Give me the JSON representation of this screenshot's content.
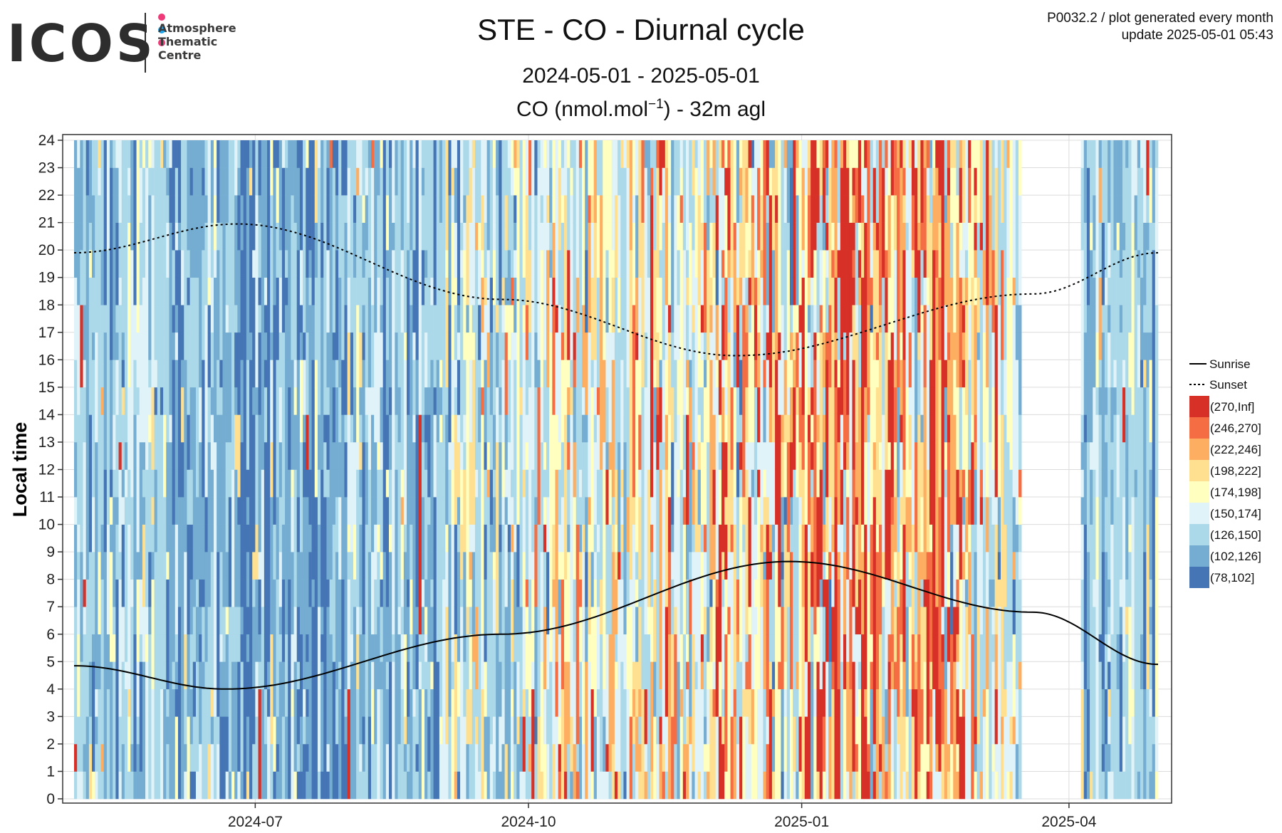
{
  "logo": {
    "text": "ICOS",
    "sub_lines": [
      "Atmosphere",
      "Thematic",
      "Centre"
    ],
    "dot_colors": [
      "#ef3a7a",
      "#1fa3e8",
      "#ef3a7a"
    ]
  },
  "meta": {
    "line1": "P0032.2 / plot generated every month",
    "line2": "update  2025-05-01 05:43"
  },
  "titles": {
    "main": "STE - CO - Diurnal cycle",
    "period": "2024-05-01 - 2025-05-01",
    "unit_prefix": "CO (nmol.mol",
    "unit_sup": "−1",
    "unit_suffix": ") - 32m agl"
  },
  "chart_data": {
    "type": "heatmap",
    "x_axis": {
      "type": "date",
      "range": [
        "2024-05-01",
        "2025-05-01"
      ],
      "ticks": [
        "2024-07",
        "2024-10",
        "2025-01",
        "2025-04"
      ],
      "tick_dates": [
        "2024-07-01",
        "2024-10-01",
        "2025-01-01",
        "2025-04-01"
      ]
    },
    "y_axis": {
      "label": "Local time",
      "ticks": [
        0,
        1,
        2,
        3,
        4,
        5,
        6,
        7,
        8,
        9,
        10,
        11,
        12,
        13,
        14,
        15,
        16,
        17,
        18,
        19,
        20,
        21,
        22,
        23,
        24
      ],
      "range": [
        0,
        24
      ]
    },
    "grid": true,
    "legend_position": "right",
    "legend": {
      "lines": [
        {
          "name": "Sunrise",
          "style": "solid"
        },
        {
          "name": "Sunset",
          "style": "dotted"
        }
      ],
      "classes": [
        {
          "label": "(270,Inf]",
          "color": "#d73027"
        },
        {
          "label": "(246,270]",
          "color": "#f46d43"
        },
        {
          "label": "(222,246]",
          "color": "#fdae61"
        },
        {
          "label": "(198,222]",
          "color": "#fee090"
        },
        {
          "label": "(174,198]",
          "color": "#ffffbf"
        },
        {
          "label": "(150,174]",
          "color": "#e0f3f8"
        },
        {
          "label": "(126,150]",
          "color": "#abd9e9"
        },
        {
          "label": "(102,126]",
          "color": "#74add1"
        },
        {
          "label": "(78,102]",
          "color": "#4575b4"
        }
      ]
    },
    "data_gap": [
      "2025-03-16",
      "2025-04-05"
    ],
    "monthly_class_weights": {
      "months": [
        "2024-05",
        "2024-06",
        "2024-07",
        "2024-08",
        "2024-09",
        "2024-10",
        "2024-11",
        "2024-12",
        "2025-01",
        "2025-02",
        "2025-03",
        "2025-04"
      ],
      "class_order_low_to_high": [
        "(78,102]",
        "(102,126]",
        "(126,150]",
        "(150,174]",
        "(174,198]",
        "(198,222]",
        "(222,246]",
        "(246,270]",
        "(270,Inf]"
      ],
      "weights": [
        [
          0.05,
          0.25,
          0.5,
          0.12,
          0.04,
          0.02,
          0.01,
          0.005,
          0.005
        ],
        [
          0.2,
          0.45,
          0.25,
          0.06,
          0.02,
          0.01,
          0.005,
          0.003,
          0.002
        ],
        [
          0.4,
          0.35,
          0.17,
          0.05,
          0.02,
          0.005,
          0.003,
          0.001,
          0.001
        ],
        [
          0.08,
          0.3,
          0.42,
          0.12,
          0.05,
          0.02,
          0.005,
          0.003,
          0.002
        ],
        [
          0.02,
          0.1,
          0.35,
          0.25,
          0.15,
          0.08,
          0.03,
          0.01,
          0.01
        ],
        [
          0.01,
          0.06,
          0.3,
          0.25,
          0.15,
          0.1,
          0.06,
          0.04,
          0.03
        ],
        [
          0.01,
          0.04,
          0.22,
          0.22,
          0.15,
          0.12,
          0.1,
          0.07,
          0.07
        ],
        [
          0.01,
          0.03,
          0.18,
          0.18,
          0.15,
          0.13,
          0.11,
          0.1,
          0.11
        ],
        [
          0.0,
          0.02,
          0.12,
          0.12,
          0.12,
          0.13,
          0.14,
          0.14,
          0.21
        ],
        [
          0.0,
          0.02,
          0.1,
          0.12,
          0.12,
          0.14,
          0.15,
          0.14,
          0.21
        ],
        [
          0.01,
          0.05,
          0.3,
          0.25,
          0.15,
          0.1,
          0.06,
          0.04,
          0.04
        ],
        [
          0.03,
          0.2,
          0.55,
          0.13,
          0.03,
          0.02,
          0.02,
          0.01,
          0.01
        ]
      ]
    },
    "sun_lines": {
      "sunrise": {
        "dates": [
          "2024-05-01",
          "2024-06-21",
          "2024-09-22",
          "2024-12-28",
          "2025-03-20",
          "2025-05-01"
        ],
        "hours": [
          4.85,
          4.0,
          6.0,
          8.65,
          6.8,
          4.9
        ]
      },
      "sunset": {
        "dates": [
          "2024-05-01",
          "2024-06-25",
          "2024-09-22",
          "2024-12-10",
          "2025-03-20",
          "2025-05-01"
        ],
        "hours": [
          19.9,
          20.95,
          18.2,
          16.15,
          18.4,
          19.9
        ]
      }
    }
  }
}
